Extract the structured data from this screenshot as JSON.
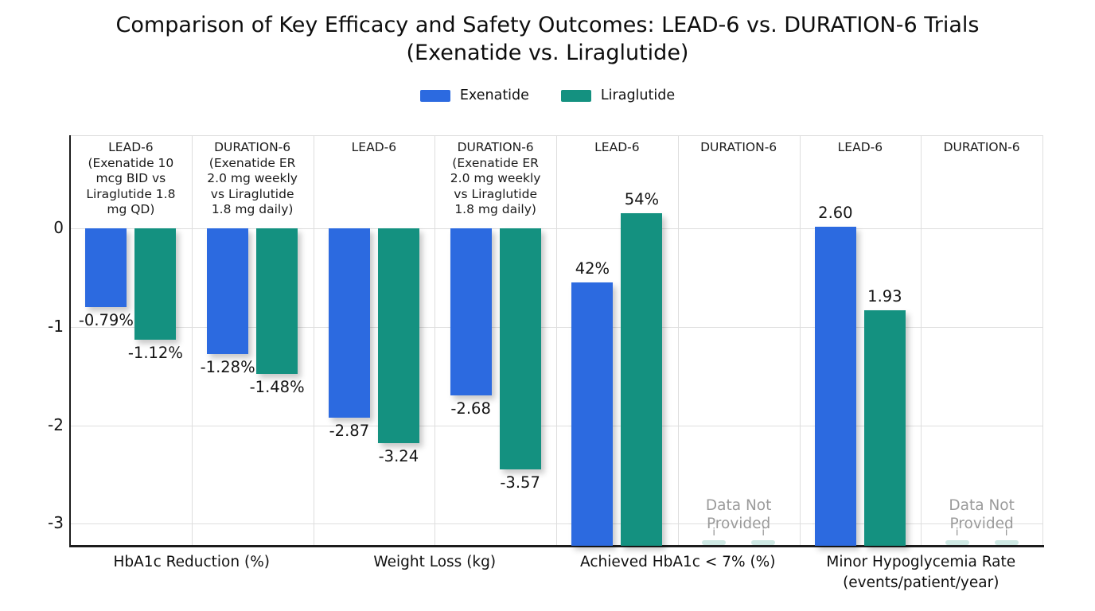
{
  "title": {
    "line1": "Comparison of Key Efficacy and Safety Outcomes: LEAD-6 vs. DURATION-6 Trials",
    "line2": "(Exenatide vs. Liraglutide)"
  },
  "legend": {
    "items": [
      {
        "label": "Exenatide",
        "color": "#2c6ae0"
      },
      {
        "label": "Liraglutide",
        "color": "#149180"
      }
    ]
  },
  "y_axis": {
    "tick_labels": [
      "0",
      "-1",
      "-2",
      "-3"
    ]
  },
  "no_data": {
    "line1": "Data Not",
    "line2": "Provided",
    "marker": "i"
  },
  "colors": {
    "exenatide": "#2c6ae0",
    "liraglutide": "#149180",
    "grid": "#dedede",
    "axis": "#1c1c1c",
    "text": "#141414",
    "muted": "#9b9b9b",
    "no_data_stub": "#cfe9e4",
    "background": "#ffffff"
  },
  "chart_data": {
    "type": "bar",
    "title": "Comparison of Key Efficacy and Safety Outcomes: LEAD-6 vs. DURATION-6 Trials (Exenatide vs. Liraglutide)",
    "series_names": [
      "Exenatide",
      "Liraglutide"
    ],
    "y_axis_ticks": [
      0,
      -1,
      -2,
      -3
    ],
    "legend_position": "top",
    "grid": true,
    "groups": [
      {
        "metric_lines": [
          "HbA1c Reduction (%)"
        ],
        "direction": "down",
        "sections": [
          {
            "header_lines": [
              "LEAD-6",
              "(Exenatide 10",
              "mcg BID vs",
              "Liraglutide 1.8",
              "mg QD)"
            ],
            "bars": [
              {
                "series": "Exenatide",
                "value": -0.79,
                "label": "-0.79%"
              },
              {
                "series": "Liraglutide",
                "value": -1.12,
                "label": "-1.12%"
              }
            ]
          },
          {
            "header_lines": [
              "DURATION-6",
              "(Exenatide ER",
              "2.0 mg weekly",
              "vs Liraglutide",
              "1.8 mg daily)"
            ],
            "bars": [
              {
                "series": "Exenatide",
                "value": -1.28,
                "label": "-1.28%"
              },
              {
                "series": "Liraglutide",
                "value": -1.48,
                "label": "-1.48%"
              }
            ]
          }
        ]
      },
      {
        "metric_lines": [
          "Weight Loss (kg)"
        ],
        "direction": "down",
        "sections": [
          {
            "header_lines": [
              "LEAD-6"
            ],
            "bars": [
              {
                "series": "Exenatide",
                "value": -2.87,
                "label": "-2.87"
              },
              {
                "series": "Liraglutide",
                "value": -3.24,
                "label": "-3.24"
              }
            ]
          },
          {
            "header_lines": [
              "DURATION-6",
              "(Exenatide ER",
              "2.0 mg weekly",
              "vs Liraglutide",
              "1.8 mg daily)"
            ],
            "bars": [
              {
                "series": "Exenatide",
                "value": -2.68,
                "label": "-2.68"
              },
              {
                "series": "Liraglutide",
                "value": -3.57,
                "label": "-3.57"
              }
            ]
          }
        ]
      },
      {
        "metric_lines": [
          "Achieved HbA1c < 7% (%)"
        ],
        "direction": "up",
        "sections": [
          {
            "header_lines": [
              "LEAD-6"
            ],
            "bars": [
              {
                "series": "Exenatide",
                "value": 42,
                "label": "42%"
              },
              {
                "series": "Liraglutide",
                "value": 54,
                "label": "54%"
              }
            ]
          },
          {
            "header_lines": [
              "DURATION-6"
            ],
            "no_data": true,
            "bars": [
              {
                "series": "Exenatide",
                "value": null,
                "label": null
              },
              {
                "series": "Liraglutide",
                "value": null,
                "label": null
              }
            ]
          }
        ]
      },
      {
        "metric_lines": [
          "Minor Hypoglycemia Rate",
          "(events/patient/year)"
        ],
        "direction": "up",
        "sections": [
          {
            "header_lines": [
              "LEAD-6"
            ],
            "bars": [
              {
                "series": "Exenatide",
                "value": 2.6,
                "label": "2.60"
              },
              {
                "series": "Liraglutide",
                "value": 1.93,
                "label": "1.93"
              }
            ]
          },
          {
            "header_lines": [
              "DURATION-6"
            ],
            "no_data": true,
            "bars": [
              {
                "series": "Exenatide",
                "value": null,
                "label": null
              },
              {
                "series": "Liraglutide",
                "value": null,
                "label": null
              }
            ]
          }
        ]
      }
    ]
  }
}
